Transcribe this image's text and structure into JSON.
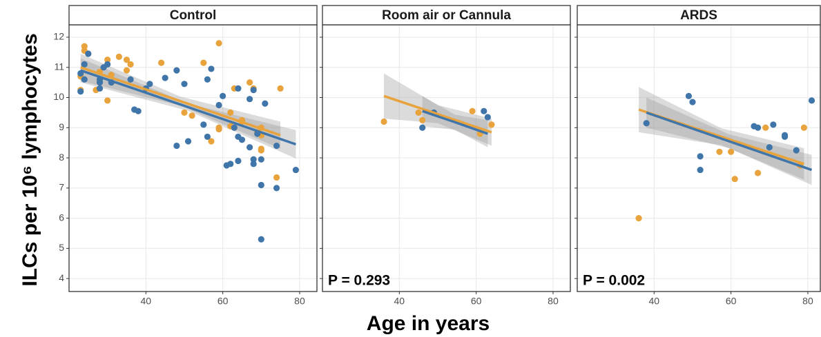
{
  "chart_data": [
    {
      "type": "scatter",
      "title": "Control",
      "ylabel": "ILCs per 10⁶ lymphocytes",
      "xlim": [
        20,
        84.5
      ],
      "ylim": [
        3.57,
        12.41
      ],
      "xticks": [
        40,
        60,
        80
      ],
      "yticks": [
        4,
        5,
        6,
        7,
        8,
        9,
        10,
        11,
        12
      ],
      "grid": true,
      "series": [
        {
          "color": "#e8a33d",
          "x": [
            23,
            23,
            24,
            24,
            25,
            27,
            28,
            30,
            30,
            31,
            33,
            35,
            35,
            36,
            44,
            50,
            52,
            55,
            57,
            59,
            59,
            59,
            62,
            62,
            63,
            63,
            65,
            65,
            67,
            68,
            69,
            70,
            70,
            70,
            70,
            74,
            75
          ],
          "values": [
            10.25,
            10.7,
            11.7,
            11.55,
            11.45,
            10.25,
            10.85,
            11.25,
            9.9,
            10.75,
            11.35,
            11.25,
            10.9,
            11.1,
            11.15,
            9.5,
            9.4,
            11.15,
            8.55,
            11.8,
            9.0,
            8.95,
            9.5,
            9.05,
            9.0,
            10.3,
            9.25,
            9.2,
            10.5,
            10.3,
            8.85,
            9.0,
            8.75,
            8.3,
            8.25,
            7.35,
            10.3
          ],
          "fit": {
            "x": [
              23,
              49,
              75
            ],
            "y": [
              11.0,
              9.88,
              8.75
            ],
            "lower": [
              10.55,
              9.73,
              8.3
            ],
            "upper": [
              11.45,
              10.03,
              9.2
            ]
          }
        },
        {
          "color": "#3f75a8",
          "x": [
            23,
            23,
            24,
            24,
            25,
            28,
            28,
            28,
            29,
            30,
            31,
            36,
            37,
            38,
            40,
            41,
            45,
            48,
            48,
            50,
            51,
            55,
            56,
            56,
            57,
            59,
            60,
            61,
            62,
            63,
            64,
            64,
            64,
            65,
            67,
            67,
            68,
            68,
            68,
            69,
            70,
            70,
            70,
            71,
            74,
            74,
            79
          ],
          "values": [
            10.8,
            10.2,
            11.1,
            10.6,
            11.45,
            10.5,
            10.3,
            10.6,
            11.0,
            11.1,
            10.5,
            10.6,
            9.6,
            9.55,
            10.3,
            10.45,
            10.65,
            10.9,
            8.4,
            10.45,
            8.55,
            9.1,
            10.6,
            8.7,
            10.95,
            9.75,
            10.05,
            7.75,
            7.8,
            9.0,
            8.7,
            10.3,
            7.9,
            8.6,
            8.35,
            9.95,
            10.25,
            7.95,
            7.8,
            8.8,
            7.95,
            7.1,
            5.3,
            9.8,
            8.4,
            7.0,
            7.6
          ],
          "fit": {
            "x": [
              23,
              51,
              79
            ],
            "y": [
              10.9,
              9.68,
              8.45
            ],
            "lower": [
              10.5,
              9.56,
              7.98
            ],
            "upper": [
              11.3,
              9.8,
              8.92
            ]
          }
        }
      ]
    },
    {
      "type": "scatter",
      "title": "Room air or Cannula",
      "xlabel": "Age in years",
      "annotation": "P = 0.293",
      "xlim": [
        20,
        84.5
      ],
      "ylim": [
        3.57,
        12.41
      ],
      "xticks": [
        40,
        60,
        80
      ],
      "yticks": [
        4,
        5,
        6,
        7,
        8,
        9,
        10,
        11,
        12
      ],
      "grid": true,
      "series": [
        {
          "color": "#e8a33d",
          "x": [
            36,
            45,
            46,
            59,
            61,
            64
          ],
          "values": [
            9.2,
            9.5,
            9.25,
            9.55,
            8.8,
            9.1
          ],
          "fit": {
            "x": [
              36,
              50,
              64
            ],
            "y": [
              10.05,
              9.45,
              8.85
            ],
            "lower": [
              9.3,
              9.15,
              8.4
            ],
            "upper": [
              10.8,
              9.75,
              9.3
            ]
          }
        },
        {
          "color": "#3f75a8",
          "x": [
            46,
            49,
            62,
            63
          ],
          "values": [
            9.0,
            9.5,
            9.55,
            9.35
          ],
          "fit": {
            "x": [
              46,
              54.5,
              63
            ],
            "y": [
              9.55,
              9.18,
              8.8
            ],
            "lower": [
              9.05,
              8.93,
              8.35
            ],
            "upper": [
              10.05,
              9.43,
              9.25
            ]
          }
        }
      ]
    },
    {
      "type": "scatter",
      "title": "ARDS",
      "annotation": "P = 0.002",
      "xlim": [
        20,
        84.5
      ],
      "ylim": [
        3.57,
        12.41
      ],
      "xticks": [
        40,
        60,
        80
      ],
      "yticks": [
        4,
        5,
        6,
        7,
        8,
        9,
        10,
        11,
        12
      ],
      "grid": true,
      "series": [
        {
          "color": "#e8a33d",
          "x": [
            36,
            57,
            60,
            61,
            67,
            69,
            79,
            78
          ],
          "values": [
            6.0,
            8.2,
            8.2,
            7.3,
            7.5,
            9.0,
            9.0,
            7.75
          ],
          "fit": {
            "x": [
              36,
              57.5,
              79
            ],
            "y": [
              9.6,
              8.7,
              7.8
            ],
            "lower": [
              8.85,
              8.42,
              7.28
            ],
            "upper": [
              10.35,
              8.98,
              8.32
            ]
          }
        },
        {
          "color": "#3f75a8",
          "x": [
            38,
            49,
            50,
            52,
            52,
            66,
            67,
            71,
            74,
            74,
            77,
            81,
            70
          ],
          "values": [
            9.15,
            10.05,
            9.85,
            8.05,
            7.6,
            9.05,
            9.0,
            9.1,
            8.75,
            8.7,
            8.25,
            9.9,
            8.35
          ],
          "fit": {
            "x": [
              38,
              59.5,
              81
            ],
            "y": [
              9.5,
              8.55,
              7.6
            ],
            "lower": [
              9.0,
              8.32,
              7.1
            ],
            "upper": [
              10.0,
              8.78,
              8.1
            ]
          }
        }
      ]
    }
  ]
}
